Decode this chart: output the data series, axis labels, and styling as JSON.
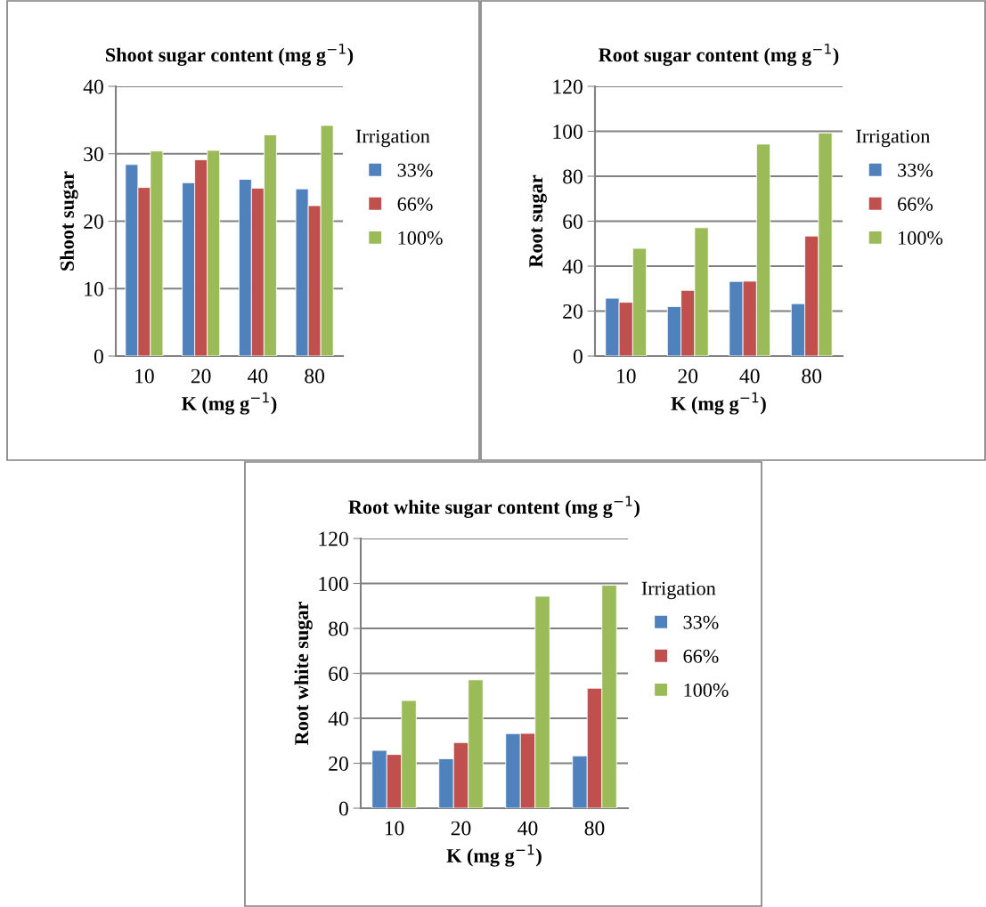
{
  "chart_data": [
    {
      "type": "bar",
      "title": "Shoot sugar content (mg g$^{−1}$)",
      "xlabel": "K (mg g$^{−1}$)",
      "ylabel": "Shoot sugar",
      "legend_title": "Irrigation",
      "categories": [
        "10",
        "20",
        "40",
        "80"
      ],
      "ylim": [
        0,
        40
      ],
      "yticks": [
        0,
        10,
        20,
        30,
        40
      ],
      "grid": "y",
      "legend": "right",
      "series": [
        {
          "name": "33%",
          "color": "#4f81bd",
          "values": [
            28.4,
            25.7,
            26.2,
            24.8
          ]
        },
        {
          "name": "66%",
          "color": "#c0504d",
          "values": [
            25.0,
            29.1,
            24.9,
            22.3
          ]
        },
        {
          "name": "100%",
          "color": "#9bbb59",
          "values": [
            30.4,
            30.5,
            32.8,
            34.2
          ]
        }
      ]
    },
    {
      "type": "bar",
      "title": "Root sugar content (mg g$^{−1}$)",
      "xlabel": "K (mg g$^{−1}$)",
      "ylabel": "Root sugar",
      "legend_title": "Irrigation",
      "categories": [
        "10",
        "20",
        "40",
        "80"
      ],
      "ylim": [
        0,
        120
      ],
      "yticks": [
        0,
        20,
        40,
        60,
        80,
        100,
        120
      ],
      "grid": "y",
      "legend": "right",
      "series": [
        {
          "name": "33%",
          "color": "#4f81bd",
          "values": [
            25.7,
            22.0,
            33.2,
            23.3
          ]
        },
        {
          "name": "66%",
          "color": "#c0504d",
          "values": [
            23.9,
            29.2,
            33.3,
            53.4
          ]
        },
        {
          "name": "100%",
          "color": "#9bbb59",
          "values": [
            47.9,
            57.1,
            94.3,
            99.2
          ]
        }
      ]
    },
    {
      "type": "bar",
      "title": "Root white sugar content (mg g$^{−1}$)",
      "xlabel": "K (mg g$^{−1}$)",
      "ylabel": "Root white sugar",
      "legend_title": "Irrigation",
      "categories": [
        "10",
        "20",
        "40",
        "80"
      ],
      "ylim": [
        0,
        120
      ],
      "yticks": [
        0,
        20,
        40,
        60,
        80,
        100,
        120
      ],
      "grid": "y",
      "legend": "right",
      "series": [
        {
          "name": "33%",
          "color": "#4f81bd",
          "values": [
            25.7,
            22.0,
            33.2,
            23.3
          ]
        },
        {
          "name": "66%",
          "color": "#c0504d",
          "values": [
            23.9,
            29.2,
            33.3,
            53.4
          ]
        },
        {
          "name": "100%",
          "color": "#9bbb59",
          "values": [
            47.9,
            57.1,
            94.3,
            99.2
          ]
        }
      ]
    }
  ]
}
